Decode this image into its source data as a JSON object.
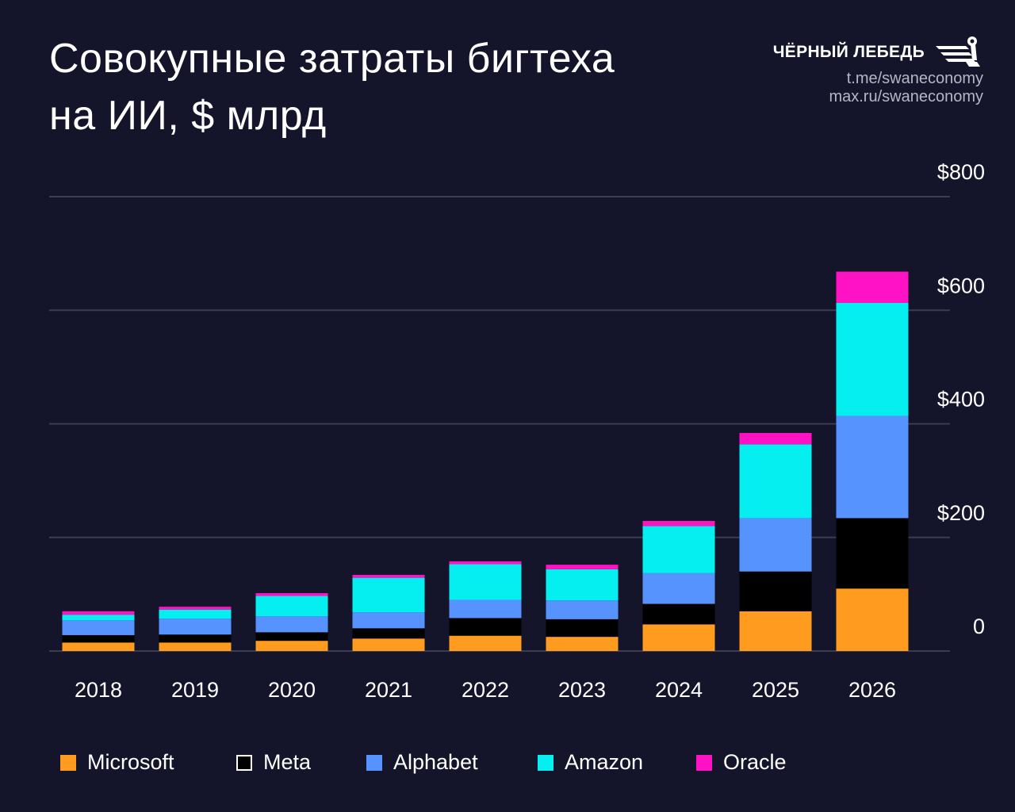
{
  "header": {
    "title_line1": "Совокупные затраты бигтеха",
    "title_line2": "на ИИ, $ млрд"
  },
  "brand": {
    "name": "ЧЁРНЫЙ ЛЕБЕДЬ",
    "link1": "t.me/swaneconomy",
    "link2": "max.ru/swaneconomy",
    "logo_icon": "swan-logo-icon"
  },
  "chart_data": {
    "type": "bar",
    "stacked": true,
    "title": "Совокупные затраты бигтеха на ИИ, $ млрд",
    "xlabel": "",
    "ylabel": "",
    "ylim": [
      0,
      800
    ],
    "yticks": [
      0,
      200,
      400,
      600,
      800
    ],
    "ytick_labels": [
      "0",
      "$200",
      "$400",
      "$600",
      "$800"
    ],
    "y_axis_position": "right",
    "grid": true,
    "legend_position": "bottom",
    "categories": [
      "2018",
      "2019",
      "2020",
      "2021",
      "2022",
      "2023",
      "2024",
      "2025",
      "2026"
    ],
    "series": [
      {
        "name": "Microsoft",
        "color": "#ff9c1f",
        "values": [
          15,
          15,
          18,
          22,
          27,
          25,
          47,
          70,
          110
        ]
      },
      {
        "name": "Meta",
        "color": "#000000",
        "values": [
          13,
          14,
          15,
          18,
          31,
          31,
          36,
          70,
          124
        ]
      },
      {
        "name": "Alphabet",
        "color": "#5793ff",
        "values": [
          26,
          28,
          28,
          28,
          32,
          33,
          54,
          94,
          180
        ]
      },
      {
        "name": "Amazon",
        "color": "#05eef0",
        "values": [
          10,
          16,
          36,
          61,
          63,
          55,
          83,
          130,
          199
        ]
      },
      {
        "name": "Oracle",
        "color": "#ff12c3",
        "values": [
          6,
          5,
          5,
          5,
          5,
          8,
          9,
          20,
          55
        ]
      }
    ]
  },
  "colors": {
    "background": "#14152a",
    "gridline": "#3a3c52"
  }
}
